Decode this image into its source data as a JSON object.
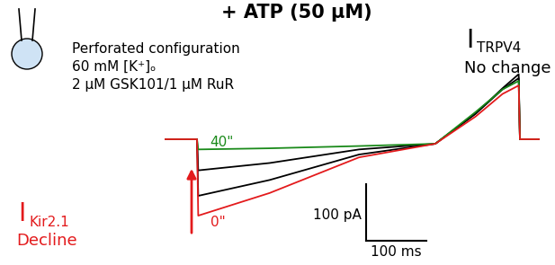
{
  "chart_data": {
    "type": "line",
    "title": "+ ATP (50 μM)",
    "x": [
      0,
      54,
      56,
      175,
      324,
      451,
      518,
      563,
      590,
      592,
      625
    ],
    "series": [
      {
        "name": "0\"",
        "color": "#e31a1c",
        "values": [
          0,
          0,
          -135,
          -95,
          -32,
          -8,
          40,
          80,
          95,
          0,
          0
        ]
      },
      {
        "color": "#000000",
        "values": [
          0,
          0,
          -100,
          -72,
          -27,
          -8,
          45,
          88,
          108,
          0,
          0
        ]
      },
      {
        "color": "#000000",
        "values": [
          0,
          0,
          -55,
          -42,
          -18,
          -8,
          45,
          90,
          115,
          0,
          0
        ]
      },
      {
        "name": "40\"",
        "color": "#1a8a1a",
        "values": [
          0,
          0,
          -18,
          -16,
          -12,
          -8,
          48,
          88,
          103,
          0,
          0
        ]
      }
    ],
    "xlim": [
      0,
      625
    ],
    "ylim": [
      -200,
      150
    ],
    "tick_labels": false,
    "scale_bars": {
      "current": 100,
      "current_label": "100 pA",
      "time": 100,
      "time_label": "100 ms"
    },
    "annotations": {
      "conditions": [
        "Perforated configuration",
        "60 mM [K⁺]ₒ",
        "2 μM GSK101/1 μM RuR"
      ],
      "trpv4": {
        "main": "I",
        "subscript": "TRPV4",
        "note": "No change"
      },
      "kir": {
        "main": "I",
        "subscript": "Kir2.1",
        "note": "Decline",
        "color": "#e31a1c"
      }
    }
  }
}
